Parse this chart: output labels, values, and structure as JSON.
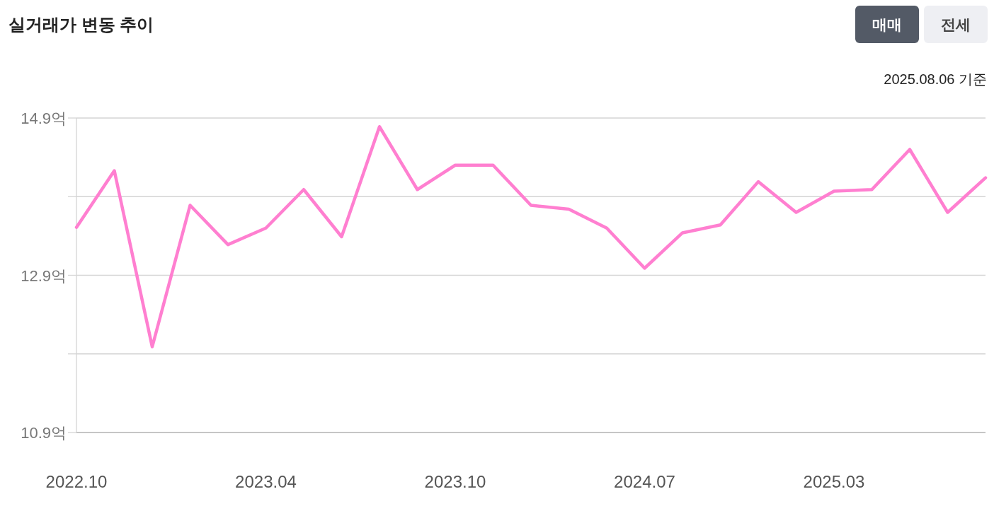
{
  "chart_data": {
    "type": "line",
    "title": "실거래가 변동 추이",
    "annotations": [
      "2025.08.06 기준",
      "매매",
      "전세"
    ],
    "categories": [
      "2022.10",
      null,
      null,
      null,
      null,
      "2023.04",
      null,
      null,
      null,
      null,
      "2023.10",
      null,
      null,
      null,
      null,
      "2024.07",
      null,
      null,
      null,
      null,
      "2025.03",
      null,
      null,
      null,
      null
    ],
    "series": [
      {
        "color": "#ff7fd0",
        "values": [
          13.51,
          14.23,
          11.99,
          13.79,
          13.29,
          13.5,
          13.99,
          13.39,
          14.79,
          13.99,
          14.3,
          14.3,
          13.79,
          13.74,
          13.5,
          12.99,
          13.44,
          13.54,
          14.09,
          13.7,
          13.97,
          13.99,
          14.5,
          13.7,
          14.14
        ]
      }
    ],
    "ylim": [
      10.9,
      14.9
    ],
    "yticks": [
      {
        "value": 10.9,
        "label": "10.9억"
      },
      {
        "value": 11.9,
        "label": null
      },
      {
        "value": 12.9,
        "label": "12.9억"
      },
      {
        "value": 13.9,
        "label": null
      },
      {
        "value": 14.9,
        "label": "14.9억"
      }
    ],
    "grid": "y",
    "marker": "none",
    "line_style": "solid"
  }
}
